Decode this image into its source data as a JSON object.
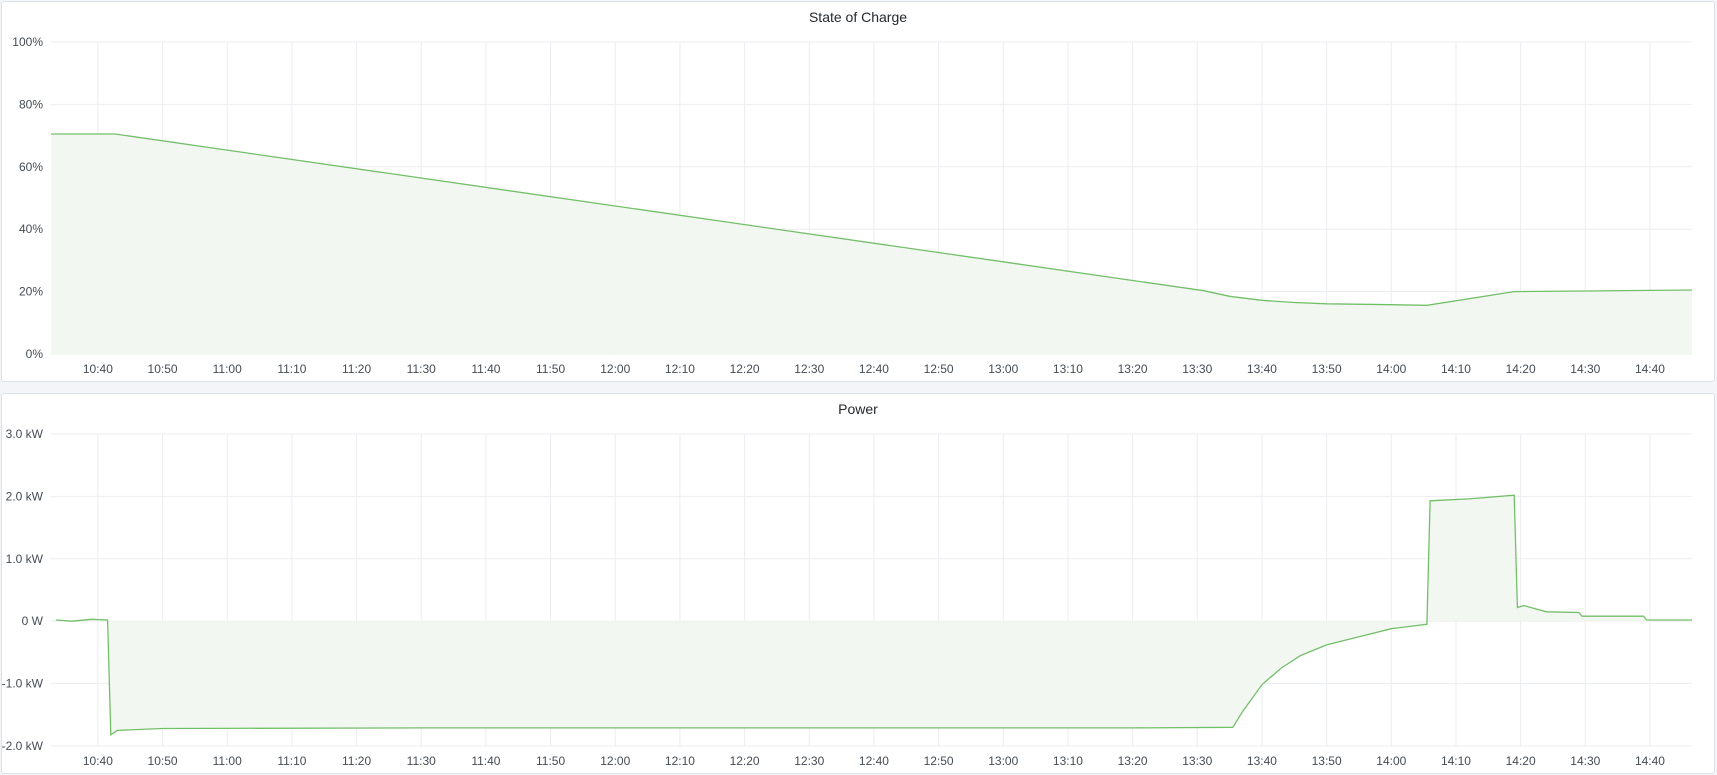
{
  "chart_data": [
    {
      "type": "area",
      "title": "State of Charge",
      "xlabel": "",
      "ylabel": "",
      "xlim": [
        "10:32:45",
        "14:46:30"
      ],
      "ylim": [
        0,
        100
      ],
      "y_unit": "%",
      "grid": true,
      "color": "#73bf69",
      "fill_color": "#f1f7ef",
      "x_ticks": [
        "10:40",
        "10:50",
        "11:00",
        "11:10",
        "11:20",
        "11:30",
        "11:40",
        "11:50",
        "12:00",
        "12:10",
        "12:20",
        "12:30",
        "12:40",
        "12:50",
        "13:00",
        "13:10",
        "13:20",
        "13:30",
        "13:40",
        "13:50",
        "14:00",
        "14:10",
        "14:20",
        "14:30",
        "14:40"
      ],
      "y_ticks": [
        "0%",
        "20%",
        "40%",
        "60%",
        "80%",
        "100%"
      ],
      "y_tick_values": [
        0,
        20,
        40,
        60,
        80,
        100
      ],
      "points": [
        [
          "10:32:45",
          70.5
        ],
        [
          "10:42:40",
          70.5
        ],
        [
          "13:31:00",
          20.3
        ],
        [
          "13:35:00",
          18.5
        ],
        [
          "13:40:00",
          17.2
        ],
        [
          "13:45:00",
          16.5
        ],
        [
          "13:50:00",
          16.1
        ],
        [
          "14:00:00",
          15.8
        ],
        [
          "14:05:30",
          15.6
        ],
        [
          "14:19:00",
          20.0
        ],
        [
          "14:30:00",
          20.2
        ],
        [
          "14:40:00",
          20.4
        ],
        [
          "14:46:30",
          20.5
        ]
      ]
    },
    {
      "type": "area",
      "title": "Power",
      "xlabel": "",
      "ylabel": "",
      "xlim": [
        "10:32:45",
        "14:46:30"
      ],
      "ylim": [
        -2.0,
        3.0
      ],
      "y_unit": "kW",
      "grid": true,
      "color": "#73bf69",
      "fill_color": "#f1f7ef",
      "x_ticks": [
        "10:40",
        "10:50",
        "11:00",
        "11:10",
        "11:20",
        "11:30",
        "11:40",
        "11:50",
        "12:00",
        "12:10",
        "12:20",
        "12:30",
        "12:40",
        "12:50",
        "13:00",
        "13:10",
        "13:20",
        "13:30",
        "13:40",
        "13:50",
        "14:00",
        "14:10",
        "14:20",
        "14:30",
        "14:40"
      ],
      "y_ticks": [
        "-2.0 kW",
        "-1.0 kW",
        "0 W",
        "1.0 kW",
        "2.0 kW",
        "3.0 kW"
      ],
      "y_tick_values": [
        -2,
        -1,
        0,
        1,
        2,
        3
      ],
      "points": [
        [
          "10:33:30",
          0.02
        ],
        [
          "10:36:00",
          0.0
        ],
        [
          "10:39:00",
          0.03
        ],
        [
          "10:41:30",
          0.02
        ],
        [
          "10:42:00",
          -1.82
        ],
        [
          "10:43:00",
          -1.75
        ],
        [
          "10:50:00",
          -1.72
        ],
        [
          "11:30:00",
          -1.71
        ],
        [
          "12:30:00",
          -1.71
        ],
        [
          "13:20:00",
          -1.71
        ],
        [
          "13:35:30",
          -1.7
        ],
        [
          "13:37:00",
          -1.45
        ],
        [
          "13:40:00",
          -1.02
        ],
        [
          "13:43:00",
          -0.75
        ],
        [
          "13:46:00",
          -0.55
        ],
        [
          "13:50:00",
          -0.38
        ],
        [
          "13:55:00",
          -0.25
        ],
        [
          "14:00:00",
          -0.12
        ],
        [
          "14:05:30",
          -0.05
        ],
        [
          "14:06:00",
          1.93
        ],
        [
          "14:12:00",
          1.96
        ],
        [
          "14:19:00",
          2.02
        ],
        [
          "14:19:30",
          0.22
        ],
        [
          "14:20:30",
          0.25
        ],
        [
          "14:24:00",
          0.15
        ],
        [
          "14:29:00",
          0.14
        ],
        [
          "14:29:30",
          0.08
        ],
        [
          "14:39:00",
          0.08
        ],
        [
          "14:39:30",
          0.02
        ],
        [
          "14:46:30",
          0.02
        ]
      ]
    }
  ]
}
